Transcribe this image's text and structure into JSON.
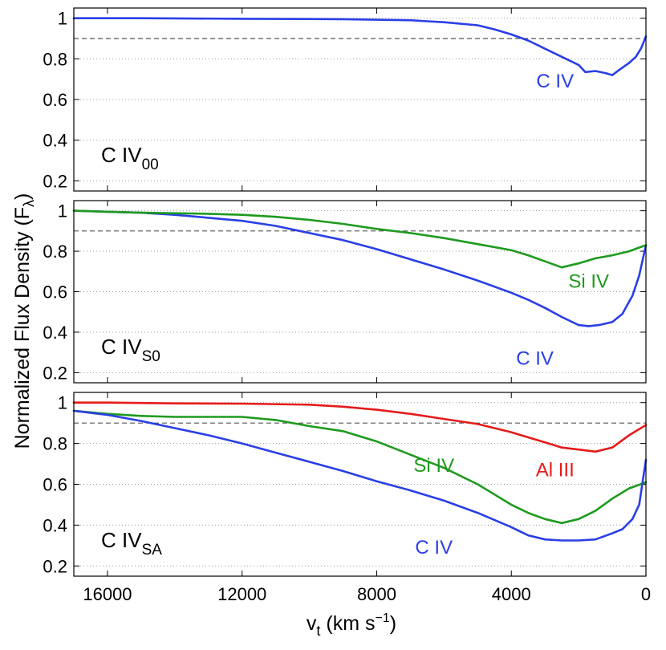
{
  "chart_data": {
    "type": "line",
    "ylabel_main": "Normalized Flux Density (F",
    "ylabel_sub": "λ",
    "ylabel_close": ")",
    "xlabel_main": "v",
    "xlabel_sub": "t",
    "xlabel_units": " (km s",
    "xlabel_exp": "−1",
    "xlabel_close": ")",
    "xlim": [
      17000,
      0
    ],
    "xticks": [
      16000,
      12000,
      8000,
      4000,
      0
    ],
    "xtick_labels": [
      "16000",
      "12000",
      "8000",
      "4000",
      "0"
    ],
    "ylim": [
      0.15,
      1.05
    ],
    "yticks": [
      0.2,
      0.4,
      0.6,
      0.8,
      1
    ],
    "ytick_labels": [
      "0.2",
      "0.4",
      "0.6",
      "0.8",
      "1"
    ],
    "reference_line": 0.9,
    "colors": {
      "civ": "#2a3fe6",
      "siiv": "#1f9a1f",
      "aliii": "#e51b1b"
    },
    "panels": [
      {
        "label": "C IV",
        "label_sub": "00",
        "series": [
          {
            "name": "C IV",
            "color": "#2a3fe6",
            "x": [
              17000,
              15000,
              12000,
              9000,
              7000,
              6500,
              6000,
              5000,
              4500,
              4000,
              3500,
              3000,
              2500,
              2000,
              1800,
              1500,
              1200,
              1000,
              800,
              500,
              300,
              150,
              0
            ],
            "y": [
              1.0,
              1.0,
              0.997,
              0.995,
              0.99,
              0.985,
              0.98,
              0.965,
              0.945,
              0.92,
              0.89,
              0.85,
              0.81,
              0.77,
              0.735,
              0.74,
              0.73,
              0.72,
              0.745,
              0.78,
              0.81,
              0.85,
              0.91
            ]
          }
        ],
        "annotations": [
          {
            "text": "C IV",
            "color": "#2a3fe6",
            "x": 2700,
            "y": 0.66
          }
        ]
      },
      {
        "label": "C IV",
        "label_sub": "S0",
        "series": [
          {
            "name": "C IV",
            "color": "#2a3fe6",
            "x": [
              17000,
              16000,
              15000,
              14000,
              13000,
              12000,
              11000,
              10000,
              9000,
              8000,
              7000,
              6000,
              5000,
              4000,
              3500,
              3000,
              2500,
              2000,
              1700,
              1400,
              1000,
              700,
              400,
              200,
              0
            ],
            "y": [
              1.0,
              0.995,
              0.99,
              0.98,
              0.965,
              0.95,
              0.925,
              0.89,
              0.855,
              0.81,
              0.76,
              0.71,
              0.655,
              0.595,
              0.56,
              0.52,
              0.475,
              0.435,
              0.43,
              0.435,
              0.45,
              0.49,
              0.58,
              0.68,
              0.83
            ]
          },
          {
            "name": "Si IV",
            "color": "#1f9a1f",
            "x": [
              17000,
              15000,
              13000,
              12000,
              11000,
              10000,
              9000,
              8000,
              7000,
              6000,
              5000,
              4000,
              3500,
              3000,
              2500,
              2000,
              1500,
              1000,
              500,
              0
            ],
            "y": [
              1.0,
              0.99,
              0.985,
              0.98,
              0.97,
              0.955,
              0.935,
              0.91,
              0.89,
              0.865,
              0.835,
              0.805,
              0.78,
              0.75,
              0.72,
              0.74,
              0.765,
              0.78,
              0.8,
              0.83
            ]
          }
        ],
        "annotations": [
          {
            "text": "Si IV",
            "color": "#1f9a1f",
            "x": 1700,
            "y": 0.62
          },
          {
            "text": "C IV",
            "color": "#2a3fe6",
            "x": 3300,
            "y": 0.24
          }
        ]
      },
      {
        "label": "C IV",
        "label_sub": "SA",
        "series": [
          {
            "name": "Al III",
            "color": "#e51b1b",
            "x": [
              17000,
              16000,
              15000,
              14000,
              12000,
              10000,
              9000,
              8000,
              7000,
              6000,
              5000,
              4000,
              3500,
              3000,
              2500,
              2000,
              1500,
              1000,
              500,
              0
            ],
            "y": [
              1.0,
              1.0,
              0.998,
              0.996,
              0.995,
              0.99,
              0.98,
              0.965,
              0.945,
              0.92,
              0.895,
              0.855,
              0.83,
              0.805,
              0.78,
              0.77,
              0.76,
              0.78,
              0.84,
              0.89
            ]
          },
          {
            "name": "Si IV",
            "color": "#1f9a1f",
            "x": [
              17000,
              16000,
              15000,
              14000,
              13000,
              12000,
              11000,
              10000,
              9000,
              8000,
              7000,
              6000,
              5000,
              4500,
              4000,
              3500,
              3000,
              2500,
              2000,
              1500,
              1000,
              500,
              0
            ],
            "y": [
              0.96,
              0.945,
              0.935,
              0.93,
              0.93,
              0.93,
              0.915,
              0.885,
              0.86,
              0.81,
              0.745,
              0.68,
              0.6,
              0.55,
              0.5,
              0.46,
              0.43,
              0.41,
              0.43,
              0.47,
              0.53,
              0.58,
              0.61
            ]
          },
          {
            "name": "C IV",
            "color": "#2a3fe6",
            "x": [
              17000,
              16000,
              15000,
              14000,
              13000,
              12000,
              11000,
              10000,
              9000,
              8000,
              7000,
              6000,
              5000,
              4000,
              3500,
              3000,
              2500,
              2000,
              1500,
              1000,
              700,
              400,
              200,
              0
            ],
            "y": [
              0.96,
              0.94,
              0.91,
              0.875,
              0.84,
              0.8,
              0.755,
              0.71,
              0.665,
              0.615,
              0.57,
              0.52,
              0.46,
              0.39,
              0.35,
              0.33,
              0.325,
              0.325,
              0.33,
              0.36,
              0.38,
              0.43,
              0.5,
              0.72
            ]
          }
        ],
        "annotations": [
          {
            "text": "Si IV",
            "color": "#1f9a1f",
            "x": 6300,
            "y": 0.66
          },
          {
            "text": "Al III",
            "color": "#e51b1b",
            "x": 2700,
            "y": 0.64
          },
          {
            "text": "C IV",
            "color": "#2a3fe6",
            "x": 6300,
            "y": 0.26
          }
        ]
      }
    ]
  }
}
